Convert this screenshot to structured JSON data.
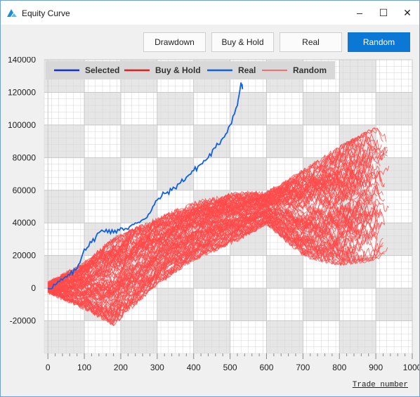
{
  "window": {
    "title": "Equity Curve",
    "minimize_label": "–",
    "maximize_label": "☐",
    "close_label": "✕"
  },
  "toolbar": {
    "buttons": [
      {
        "label": "Drawdown",
        "active": false
      },
      {
        "label": "Buy & Hold",
        "active": false
      },
      {
        "label": "Real",
        "active": false
      },
      {
        "label": "Random",
        "active": true
      }
    ]
  },
  "colors": {
    "selected": "#1030d0",
    "buy_hold": "#e02020",
    "real": "#1060e0",
    "random": "#ff4a4a",
    "accent": "#0a78d4"
  },
  "chart_data": {
    "type": "line",
    "title": "",
    "xlabel": "Trade number",
    "ylabel": "",
    "xlim": [
      -10,
      1000
    ],
    "ylim": [
      -40000,
      140000
    ],
    "x_ticks": [
      0,
      100,
      200,
      300,
      400,
      500,
      600,
      700,
      800,
      900,
      1000
    ],
    "y_ticks": [
      -20000,
      0,
      20000,
      40000,
      60000,
      80000,
      100000,
      120000,
      140000
    ],
    "grid": true,
    "legend": {
      "position": "top",
      "entries": [
        "Selected",
        "Buy & Hold",
        "Real",
        "Random"
      ]
    },
    "series": [
      {
        "name": "Real",
        "x": [
          0,
          20,
          40,
          60,
          80,
          100,
          120,
          140,
          160,
          180,
          200,
          220,
          240,
          260,
          280,
          300,
          320,
          340,
          360,
          380,
          400,
          420,
          440,
          460,
          480,
          500,
          520,
          530,
          535
        ],
        "y": [
          0,
          2000,
          5000,
          8000,
          12000,
          24000,
          28000,
          34000,
          36000,
          34000,
          37000,
          36000,
          40000,
          42000,
          46000,
          54000,
          58000,
          60000,
          64000,
          68000,
          72000,
          76000,
          80000,
          86000,
          92000,
          100000,
          112000,
          126000,
          122000
        ]
      },
      {
        "name": "Random",
        "count": 100,
        "x_end_range": [
          830,
          940
        ],
        "envelope": {
          "x": [
            0,
            100,
            180,
            300,
            400,
            520,
            600,
            700,
            800,
            900,
            940
          ],
          "low": [
            -2000,
            -12000,
            -22000,
            3000,
            18000,
            30000,
            40000,
            20000,
            15000,
            18000,
            25000
          ],
          "high": [
            3000,
            15000,
            30000,
            42000,
            52000,
            58000,
            58000,
            72000,
            86000,
            98000,
            90000
          ]
        }
      }
    ]
  }
}
